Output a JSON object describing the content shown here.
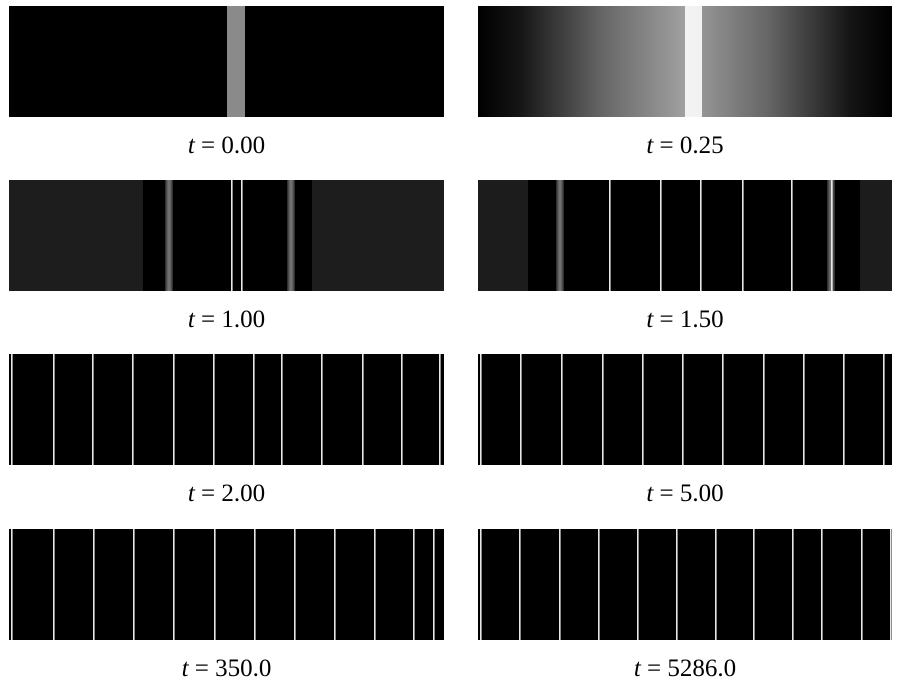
{
  "figure": {
    "panels": [
      {
        "caption": "t = 0.00"
      },
      {
        "caption": "t = 0.25"
      },
      {
        "caption": "t = 1.00"
      },
      {
        "caption": "t = 1.50"
      },
      {
        "caption": "t = 2.00"
      },
      {
        "caption": "t = 5.00"
      },
      {
        "caption": "t = 350.0"
      },
      {
        "caption": "t = 5286.0"
      }
    ]
  }
}
